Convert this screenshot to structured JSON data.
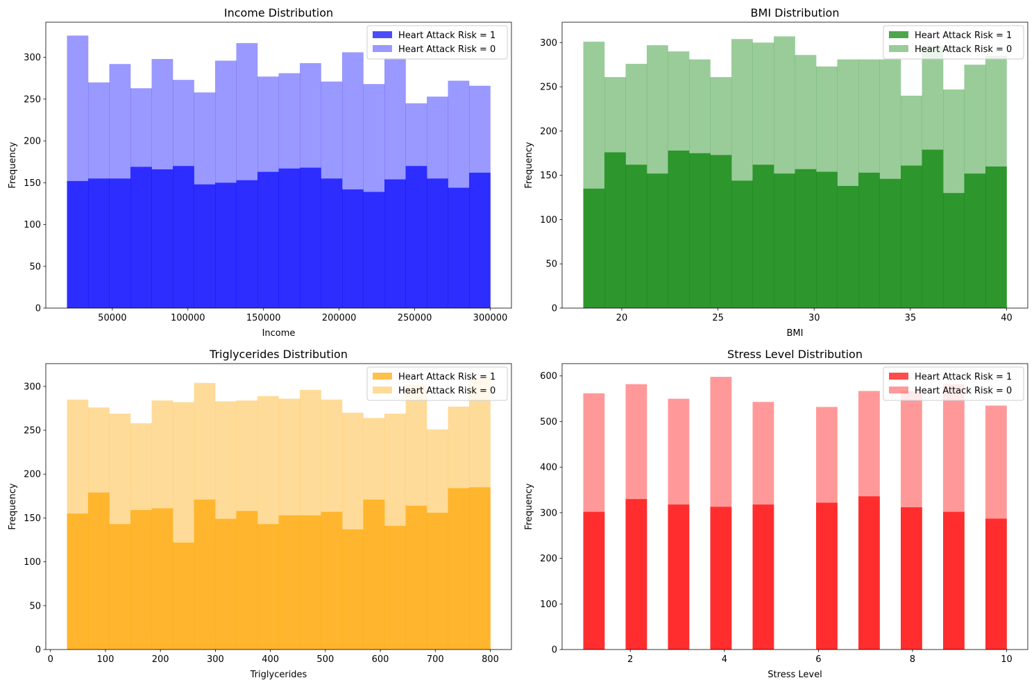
{
  "chart_data": [
    {
      "type": "bar",
      "title": "Income Distribution",
      "xlabel": "Income",
      "ylabel": "Frequency",
      "color": "#0000ff",
      "bin_range": [
        20000,
        300000
      ],
      "xlim": [
        6000,
        314000
      ],
      "ylim": [
        0,
        342
      ],
      "xticks": [
        50000,
        100000,
        150000,
        200000,
        250000,
        300000
      ],
      "yticks": [
        0,
        50,
        100,
        150,
        200,
        250,
        300
      ],
      "legend_position": "top-right",
      "series": [
        {
          "name": "Heart Attack Risk = 1",
          "opacity": 0.7,
          "values": [
            152,
            155,
            155,
            169,
            166,
            170,
            148,
            150,
            153,
            163,
            167,
            168,
            155,
            142,
            139,
            154,
            170,
            155,
            144,
            162
          ]
        },
        {
          "name": "Heart Attack Risk = 0",
          "opacity": 0.4,
          "values": [
            326,
            270,
            292,
            263,
            298,
            273,
            258,
            296,
            317,
            277,
            281,
            293,
            271,
            306,
            268,
            299,
            245,
            253,
            272,
            266
          ]
        }
      ]
    },
    {
      "type": "bar",
      "title": "BMI Distribution",
      "xlabel": "BMI",
      "ylabel": "Frequency",
      "color": "#008000",
      "bin_range": [
        18,
        40
      ],
      "xlim": [
        16.9,
        41.1
      ],
      "ylim": [
        0,
        323
      ],
      "xticks": [
        20,
        25,
        30,
        35,
        40
      ],
      "yticks": [
        0,
        50,
        100,
        150,
        200,
        250,
        300
      ],
      "legend_position": "top-right",
      "series": [
        {
          "name": "Heart Attack Risk = 1",
          "opacity": 0.7,
          "values": [
            135,
            176,
            162,
            152,
            178,
            175,
            173,
            144,
            162,
            152,
            157,
            154,
            138,
            153,
            146,
            161,
            179,
            130,
            152,
            160
          ]
        },
        {
          "name": "Heart Attack Risk = 0",
          "opacity": 0.4,
          "values": [
            301,
            261,
            276,
            297,
            290,
            281,
            261,
            304,
            300,
            307,
            286,
            273,
            281,
            281,
            281,
            240,
            296,
            247,
            275,
            285
          ]
        }
      ]
    },
    {
      "type": "bar",
      "title": "Triglycerides Distribution",
      "xlabel": "Triglycerides",
      "ylabel": "Frequency",
      "color": "#ffa500",
      "bin_range": [
        30,
        800
      ],
      "xlim": [
        -8.5,
        838.5
      ],
      "ylim": [
        0,
        326
      ],
      "xticks": [
        0,
        100,
        200,
        300,
        400,
        500,
        600,
        700,
        800
      ],
      "yticks": [
        0,
        50,
        100,
        150,
        200,
        250,
        300
      ],
      "legend_position": "top-right",
      "series": [
        {
          "name": "Heart Attack Risk = 1",
          "opacity": 0.7,
          "values": [
            155,
            179,
            143,
            159,
            161,
            122,
            171,
            149,
            158,
            143,
            153,
            153,
            157,
            137,
            171,
            141,
            164,
            156,
            184,
            185
          ]
        },
        {
          "name": "Heart Attack Risk = 0",
          "opacity": 0.4,
          "values": [
            285,
            276,
            269,
            258,
            284,
            282,
            304,
            283,
            284,
            289,
            286,
            296,
            285,
            270,
            264,
            269,
            302,
            251,
            277,
            310
          ]
        }
      ]
    },
    {
      "type": "bar",
      "title": "Stress Level Distribution",
      "xlabel": "Stress Level",
      "ylabel": "Frequency",
      "color": "#ff0000",
      "bin_range": [
        1,
        10
      ],
      "xlim": [
        0.55,
        10.45
      ],
      "ylim": [
        0,
        627
      ],
      "xticks": [
        2,
        4,
        6,
        8,
        10
      ],
      "yticks": [
        0,
        100,
        200,
        300,
        400,
        500,
        600
      ],
      "legend_position": "top-right",
      "series": [
        {
          "name": "Heart Attack Risk = 1",
          "opacity": 0.7,
          "values": [
            302,
            0,
            330,
            0,
            318,
            0,
            313,
            0,
            318,
            0,
            0,
            322,
            0,
            336,
            0,
            312,
            0,
            302,
            0,
            287
          ]
        },
        {
          "name": "Heart Attack Risk = 0",
          "opacity": 0.4,
          "values": [
            562,
            0,
            582,
            0,
            550,
            0,
            598,
            0,
            543,
            0,
            0,
            532,
            0,
            567,
            0,
            567,
            0,
            582,
            0,
            535
          ]
        }
      ]
    }
  ]
}
